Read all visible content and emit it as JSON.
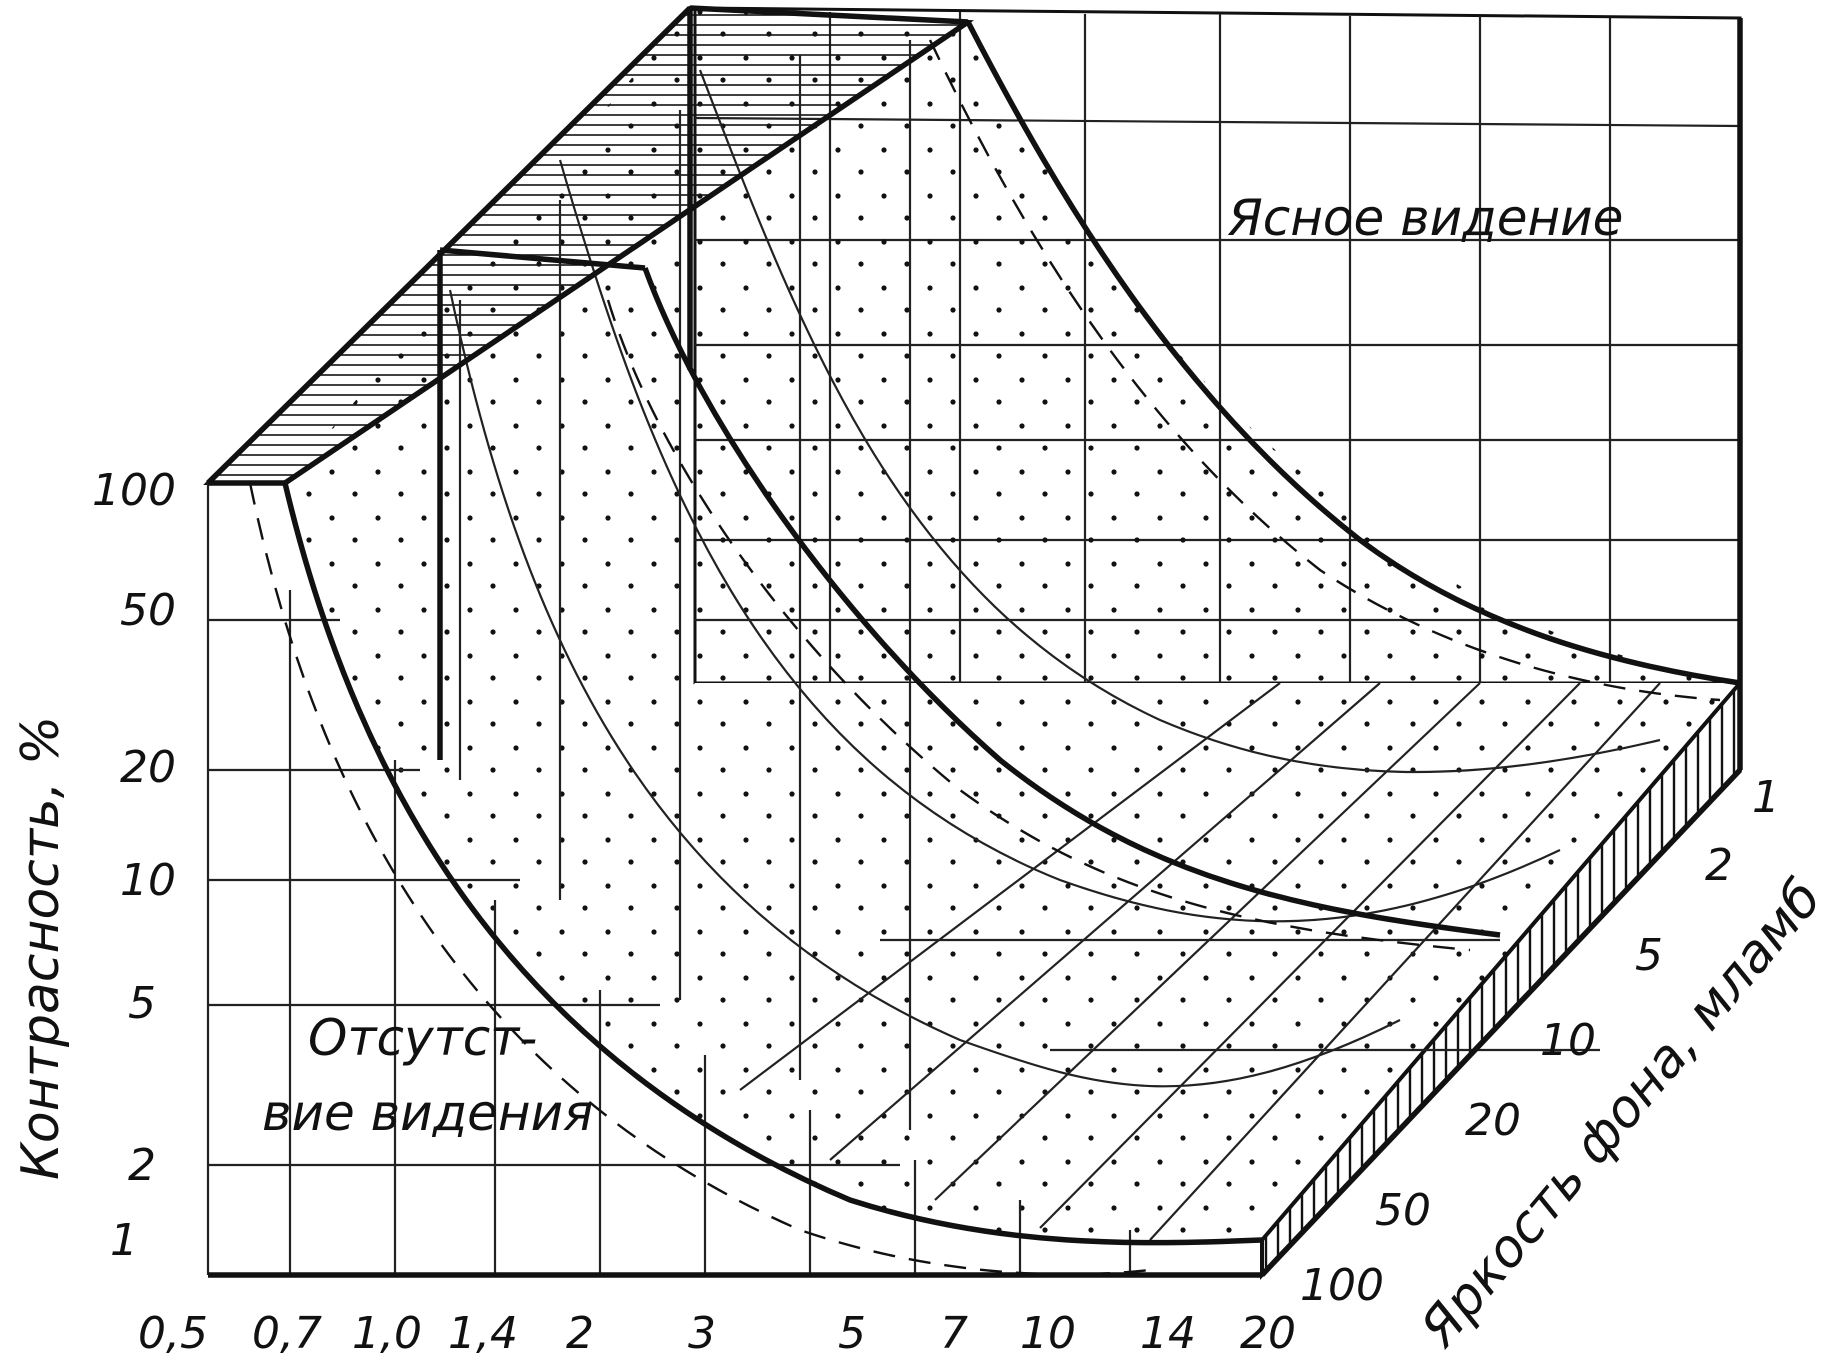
{
  "x_axis": {
    "ticks": [
      "0,5",
      "0,7",
      "1,0",
      "1,4",
      "2",
      "3",
      "5",
      "7",
      "10",
      "14",
      "20"
    ]
  },
  "y_axis": {
    "title": "Контрасность, %",
    "ticks": [
      "100",
      "50",
      "20",
      "10",
      "5",
      "2",
      "1"
    ]
  },
  "z_axis": {
    "title": "Яркость фона, млaмб",
    "ticks": [
      "1",
      "2",
      "5",
      "10",
      "20",
      "50",
      "100"
    ]
  },
  "regions": {
    "clear": "Ясное видение",
    "none_line1": "Отсутст-",
    "none_line2": "вие видения"
  },
  "colors": {
    "ink": "#111111",
    "paper": "#ffffff"
  },
  "texture": {
    "fill": "dotted",
    "top_face": "horizontal-hatching",
    "side_face": "vertical-hatching"
  }
}
